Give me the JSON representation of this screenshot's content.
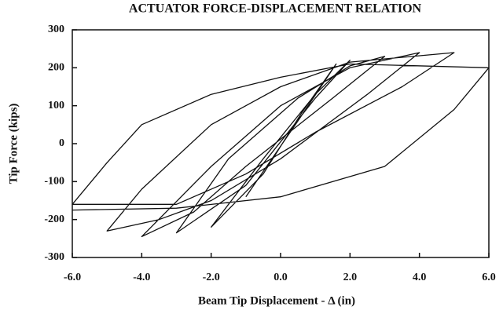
{
  "chart_data": {
    "type": "line",
    "title": "ACTUATOR FORCE-DISPLACEMENT RELATION",
    "xlabel": "Beam Tip Displacement - Δ (in)",
    "ylabel": "Tip Force (kips)",
    "xlim": [
      -6,
      6
    ],
    "ylim": [
      -300,
      300
    ],
    "xticks": [
      {
        "value": -6,
        "label": "-6.0"
      },
      {
        "value": -4,
        "label": "-4.0"
      },
      {
        "value": -2,
        "label": "-2.0"
      },
      {
        "value": 0,
        "label": "0.0"
      },
      {
        "value": 2,
        "label": "2.0"
      },
      {
        "value": 4,
        "label": "4.0"
      },
      {
        "value": 6,
        "label": "6.0"
      }
    ],
    "yticks": [
      300,
      200,
      100,
      0,
      -100,
      -200,
      -300
    ],
    "series": [
      {
        "color": "#111111",
        "x": [
          -1,
          0.5,
          1.6,
          0.6,
          -0.5,
          -2,
          -0.5,
          1,
          2,
          1,
          -1,
          -3,
          -1.5,
          0.5,
          2,
          3,
          1.5,
          -1,
          -2.5,
          -4,
          -2,
          0,
          2,
          4,
          2.5,
          0,
          -2,
          -3.5,
          -5,
          -4,
          -2,
          0,
          2,
          5,
          3.5,
          1,
          -1,
          -3,
          -6,
          -5,
          -4,
          -2,
          0,
          2,
          6,
          5,
          3,
          0,
          -3,
          -6
        ],
        "values": [
          -140,
          60,
          210,
          80,
          -80,
          -220,
          -40,
          130,
          220,
          120,
          -110,
          -235,
          -40,
          120,
          205,
          230,
          120,
          -60,
          -180,
          -245,
          -60,
          100,
          200,
          240,
          130,
          -40,
          -150,
          -200,
          -230,
          -120,
          50,
          150,
          215,
          240,
          150,
          30,
          -80,
          -160,
          -160,
          -50,
          50,
          130,
          175,
          210,
          200,
          90,
          -60,
          -140,
          -170,
          -175
        ]
      }
    ]
  }
}
